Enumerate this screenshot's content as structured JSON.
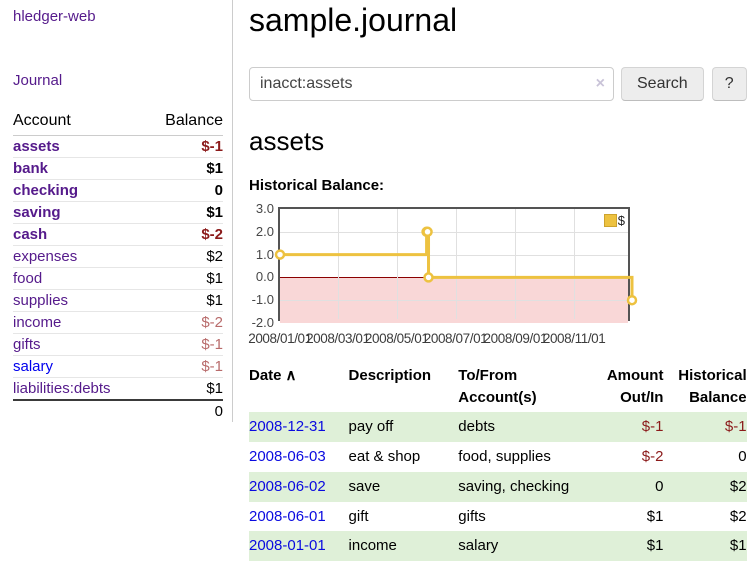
{
  "app": {
    "brand": "hledger-web",
    "nav_journal": "Journal"
  },
  "sidebar": {
    "headers": {
      "account": "Account",
      "balance": "Balance"
    },
    "rows": [
      {
        "name": "assets",
        "balance": "$-1",
        "depth": 1,
        "bold": true,
        "balance_style": "neg",
        "visited": true
      },
      {
        "name": "bank",
        "balance": "$1",
        "depth": 2,
        "bold": true,
        "balance_style": "",
        "visited": true
      },
      {
        "name": "checking",
        "balance": "0",
        "depth": 3,
        "bold": true,
        "balance_style": "",
        "visited": true
      },
      {
        "name": "saving",
        "balance": "$1",
        "depth": 3,
        "bold": true,
        "balance_style": "",
        "visited": true
      },
      {
        "name": "cash",
        "balance": "$-2",
        "depth": 2,
        "bold": true,
        "balance_style": "neg",
        "visited": true
      },
      {
        "name": "expenses",
        "balance": "$2",
        "depth": 1,
        "bold": false,
        "balance_style": "",
        "visited": true
      },
      {
        "name": "food",
        "balance": "$1",
        "depth": 2,
        "bold": false,
        "balance_style": "",
        "visited": true
      },
      {
        "name": "supplies",
        "balance": "$1",
        "depth": 2,
        "bold": false,
        "balance_style": "",
        "visited": true
      },
      {
        "name": "income",
        "balance": "$-2",
        "depth": 1,
        "bold": false,
        "balance_style": "negsoft",
        "visited": true
      },
      {
        "name": "gifts",
        "balance": "$-1",
        "depth": 2,
        "bold": false,
        "balance_style": "negsoft",
        "visited": true
      },
      {
        "name": "salary",
        "balance": "$-1",
        "depth": 2,
        "bold": false,
        "balance_style": "negsoft",
        "visited": false
      },
      {
        "name": "liabilities:debts",
        "balance": "$1",
        "depth": 1,
        "bold": false,
        "balance_style": "",
        "visited": true
      }
    ],
    "total": "0"
  },
  "main": {
    "title": "sample.journal",
    "search": {
      "value": "inacct:assets",
      "clear_icon": "×",
      "button": "Search",
      "help_button": "?"
    },
    "account_heading": "assets",
    "register": {
      "headers": {
        "date": "Date",
        "sort_icon": "∧",
        "description": "Description",
        "accounts": "To/From Account(s)",
        "amount": "Amount Out/In",
        "balance": "Historical Balance"
      },
      "rows": [
        {
          "date": "2008-12-31",
          "description": "pay off",
          "accounts": "debts",
          "amount": "$-1",
          "amount_style": "neg",
          "balance": "$-1",
          "balance_style": "neg"
        },
        {
          "date": "2008-06-03",
          "description": "eat & shop",
          "accounts": "food, supplies",
          "amount": "$-2",
          "amount_style": "neg",
          "balance": "0",
          "balance_style": ""
        },
        {
          "date": "2008-06-02",
          "description": "save",
          "accounts": "saving, checking",
          "amount": "0",
          "amount_style": "",
          "balance": "$2",
          "balance_style": ""
        },
        {
          "date": "2008-06-01",
          "description": "gift",
          "accounts": "gifts",
          "amount": "$1",
          "amount_style": "",
          "balance": "$2",
          "balance_style": ""
        },
        {
          "date": "2008-01-01",
          "description": "income",
          "accounts": "salary",
          "amount": "$1",
          "amount_style": "",
          "balance": "$1",
          "balance_style": ""
        }
      ]
    }
  },
  "chart_data": {
    "type": "line",
    "title": "Historical Balance:",
    "style": "steps",
    "series": [
      {
        "name": "$",
        "color": "#edc240",
        "points": [
          {
            "date": "2008-01-01",
            "day": 0,
            "y": 1
          },
          {
            "date": "2008-06-01",
            "day": 152,
            "y": 2
          },
          {
            "date": "2008-06-02",
            "day": 153,
            "y": 2
          },
          {
            "date": "2008-06-03",
            "day": 154,
            "y": 0
          },
          {
            "date": "2008-12-31",
            "day": 365,
            "y": -1
          }
        ]
      }
    ],
    "x_ticks": [
      {
        "label": "2008/01/01",
        "day": 0
      },
      {
        "label": "2008/03/01",
        "day": 60
      },
      {
        "label": "2008/05/01",
        "day": 121
      },
      {
        "label": "2008/07/01",
        "day": 182
      },
      {
        "label": "2008/09/01",
        "day": 244
      },
      {
        "label": "2008/11/01",
        "day": 305
      }
    ],
    "x_domain_days": [
      0,
      365
    ],
    "y_ticks": [
      {
        "label": "3.0",
        "value": 3
      },
      {
        "label": "2.0",
        "value": 2
      },
      {
        "label": "1.0",
        "value": 1
      },
      {
        "label": "0.0",
        "value": 0
      },
      {
        "label": "-1.0",
        "value": -1
      },
      {
        "label": "-2.0",
        "value": -2
      }
    ],
    "ylim": [
      -2,
      3
    ],
    "grid": true,
    "legend": {
      "label": "$",
      "position": "top-right"
    },
    "negative_region_color": "#f9d7d7",
    "zero_line_color": "#8b0000"
  }
}
